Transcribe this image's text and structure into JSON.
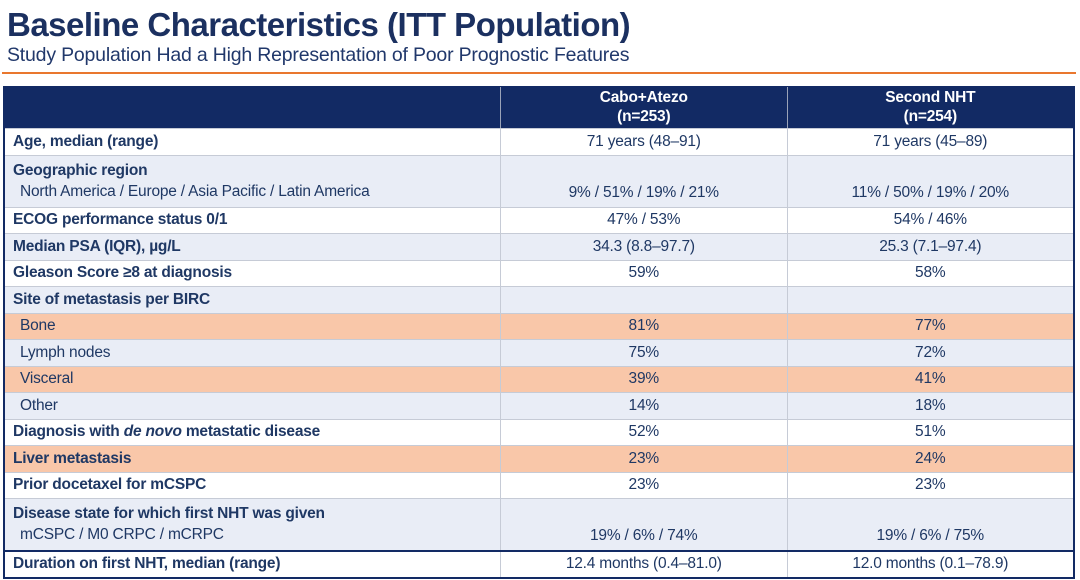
{
  "slide": {
    "title": "Baseline Characteristics (ITT Population)",
    "subtitle": "Study Population Had a High Representation of Poor Prognostic Features"
  },
  "colors": {
    "header_navy": "#122a64",
    "text_navy": "#1f3864",
    "row_blue": "#e9edf6",
    "row_orange": "#f9c7a9",
    "accent_orange": "#e9772e",
    "grid_gray": "#c6cbd6"
  },
  "table": {
    "columns": [
      {
        "label": "",
        "sublabel": ""
      },
      {
        "label": "Cabo+Atezo",
        "sublabel": "(n=253)"
      },
      {
        "label": "Second NHT",
        "sublabel": "(n=254)"
      }
    ],
    "rows": [
      {
        "label": "Age, median (range)",
        "bold": true,
        "bg": "white",
        "values": [
          "71 years (48–91)",
          "71 years (45–89)"
        ]
      },
      {
        "label": "Geographic region",
        "sublabel": "North America / Europe / Asia Pacific / Latin America",
        "bold": true,
        "bg": "blue",
        "values": [
          "9% / 51% / 19% / 21%",
          "11% / 50% / 19% / 20%"
        ]
      },
      {
        "label": "ECOG performance status 0/1",
        "bold": true,
        "bg": "white",
        "values": [
          "47% / 53%",
          "54% / 46%"
        ]
      },
      {
        "label": "Median PSA (IQR), µg/L",
        "bold": true,
        "bg": "blue",
        "values": [
          "34.3 (8.8–97.7)",
          "25.3 (7.1–97.4)"
        ]
      },
      {
        "label": "Gleason Score ≥8 at diagnosis",
        "bold": true,
        "bg": "white",
        "values": [
          "59%",
          "58%"
        ]
      },
      {
        "label": "Site of metastasis per BIRC",
        "bold": true,
        "bg": "blue",
        "values": [
          "",
          ""
        ]
      },
      {
        "label": "Bone",
        "bold": false,
        "indent": true,
        "bg": "orange",
        "values": [
          "81%",
          "77%"
        ]
      },
      {
        "label": "Lymph nodes",
        "bold": false,
        "indent": true,
        "bg": "blue",
        "values": [
          "75%",
          "72%"
        ]
      },
      {
        "label": "Visceral",
        "bold": false,
        "indent": true,
        "bg": "orange",
        "values": [
          "39%",
          "41%"
        ]
      },
      {
        "label": "Other",
        "bold": false,
        "indent": true,
        "bg": "blue",
        "values": [
          "14%",
          "18%"
        ]
      },
      {
        "label_parts": [
          {
            "text": "Diagnosis with ",
            "italic": false
          },
          {
            "text": "de novo",
            "italic": true
          },
          {
            "text": " metastatic disease",
            "italic": false
          }
        ],
        "bold": true,
        "bg": "white",
        "values": [
          "52%",
          "51%"
        ]
      },
      {
        "label": "Liver metastasis",
        "bold": true,
        "bg": "orange",
        "values": [
          "23%",
          "24%"
        ]
      },
      {
        "label": "Prior docetaxel for mCSPC",
        "bold": true,
        "bg": "white",
        "values": [
          "23%",
          "23%"
        ]
      },
      {
        "label": "Disease state for which first NHT was given",
        "sublabel": "mCSPC / M0 CRPC / mCRPC",
        "bold": true,
        "bg": "blue",
        "values": [
          "19% / 6% / 74%",
          "19% / 6% / 75%"
        ]
      },
      {
        "label": "Duration on first NHT, median (range)",
        "bold": true,
        "bg": "white",
        "top_border": true,
        "values": [
          "12.4 months (0.4–81.0)",
          "12.0 months (0.1–78.9)"
        ]
      }
    ]
  }
}
